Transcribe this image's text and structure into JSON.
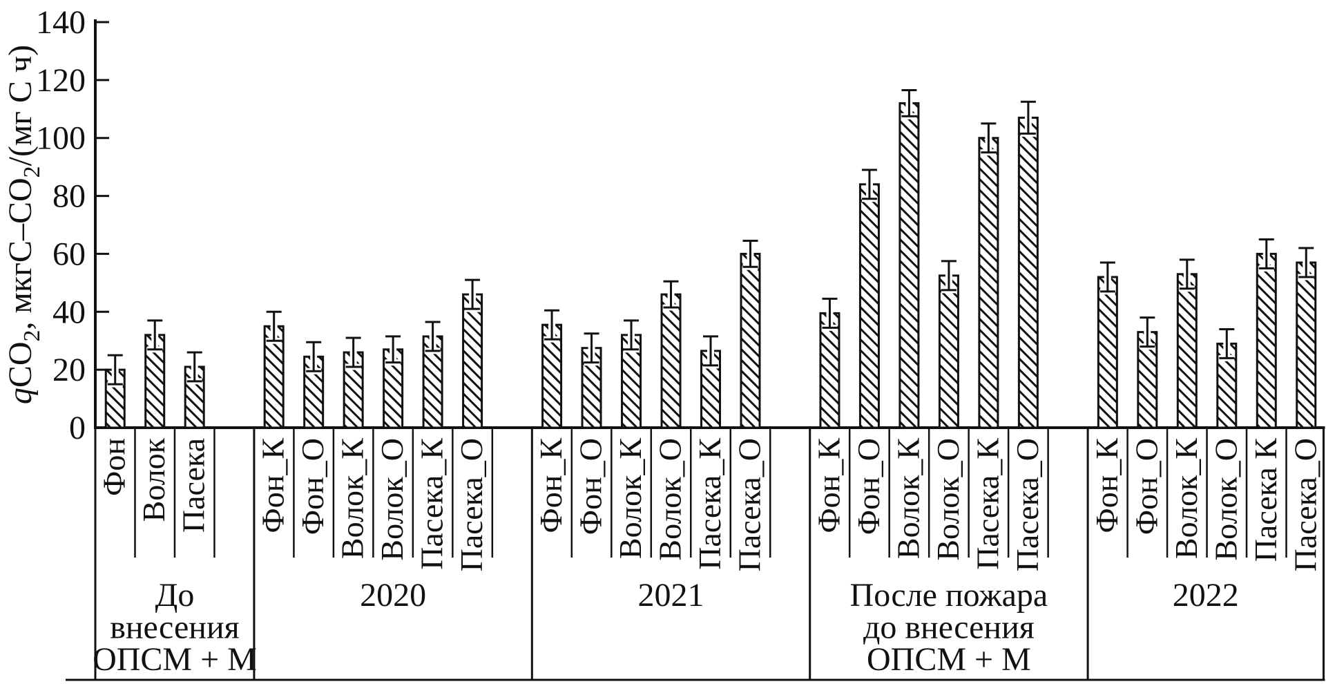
{
  "chart_data": {
    "type": "bar",
    "title": "",
    "ylabel_plain": "qCO2, мкгС–CO2/(мг С ч)",
    "ylabel_parts": [
      {
        "text": "q",
        "italic": true
      },
      {
        "text": "CO"
      },
      {
        "text": "2",
        "sub": true
      },
      {
        "text": ", мкгС–CO"
      },
      {
        "text": "2",
        "sub": true
      },
      {
        "text": "/(мг С ч)"
      }
    ],
    "ylim": [
      0,
      140
    ],
    "ytick_step": 20,
    "yticks": [
      0,
      20,
      40,
      60,
      80,
      100,
      120,
      140
    ],
    "grid": false,
    "legend": "none",
    "bar_style": {
      "fill": "#ffffff",
      "hatch": "diagonal-down",
      "edge_color": "#111111",
      "error_bars": "plus-minus, black with white halo"
    },
    "groups": [
      {
        "title_lines": [
          "До",
          "внесения",
          "ОПСМ + М"
        ],
        "categories": [
          "Фон",
          "Волок",
          "Пасека"
        ],
        "values": [
          20,
          32,
          21
        ],
        "errors": [
          5,
          5,
          5
        ],
        "trailing_empty_cell": true
      },
      {
        "title_lines": [
          "2020"
        ],
        "categories": [
          "Фон_К",
          "Фон_О",
          "Волок_К",
          "Волок_О",
          "Пасека_К",
          "Пасека_О"
        ],
        "values": [
          35,
          24.5,
          26,
          27,
          31.5,
          46
        ],
        "errors": [
          5,
          5,
          5,
          4.5,
          5,
          5
        ],
        "trailing_empty_cell": true
      },
      {
        "title_lines": [
          "2021"
        ],
        "categories": [
          "Фон_К",
          "Фон_О",
          "Волок_К",
          "Волок_О",
          "Пасека_К",
          "Пасека_О"
        ],
        "values": [
          35.5,
          27.5,
          32,
          46,
          26.5,
          60
        ],
        "errors": [
          5,
          5,
          5,
          4.5,
          5,
          4.5
        ],
        "trailing_empty_cell": true
      },
      {
        "title_lines": [
          "После пожара",
          "до внесения",
          "ОПСМ + М"
        ],
        "categories": [
          "Фон_К",
          "Фон_О",
          "Волок_К",
          "Волок_О",
          "Пасека_К",
          "Пасека_О"
        ],
        "values": [
          39.5,
          84,
          112,
          52.5,
          100,
          107
        ],
        "errors": [
          5,
          5,
          4.5,
          5,
          5,
          5.5
        ],
        "trailing_empty_cell": true
      },
      {
        "title_lines": [
          "2022"
        ],
        "categories": [
          "Фон_К",
          "Фон_О",
          "Волок_К",
          "Волок_О",
          "Пасека К",
          "Пасека_О"
        ],
        "values": [
          52,
          33,
          53,
          29,
          60,
          57
        ],
        "errors": [
          5,
          5,
          5,
          5,
          5,
          5
        ],
        "trailing_empty_cell": false
      }
    ]
  }
}
